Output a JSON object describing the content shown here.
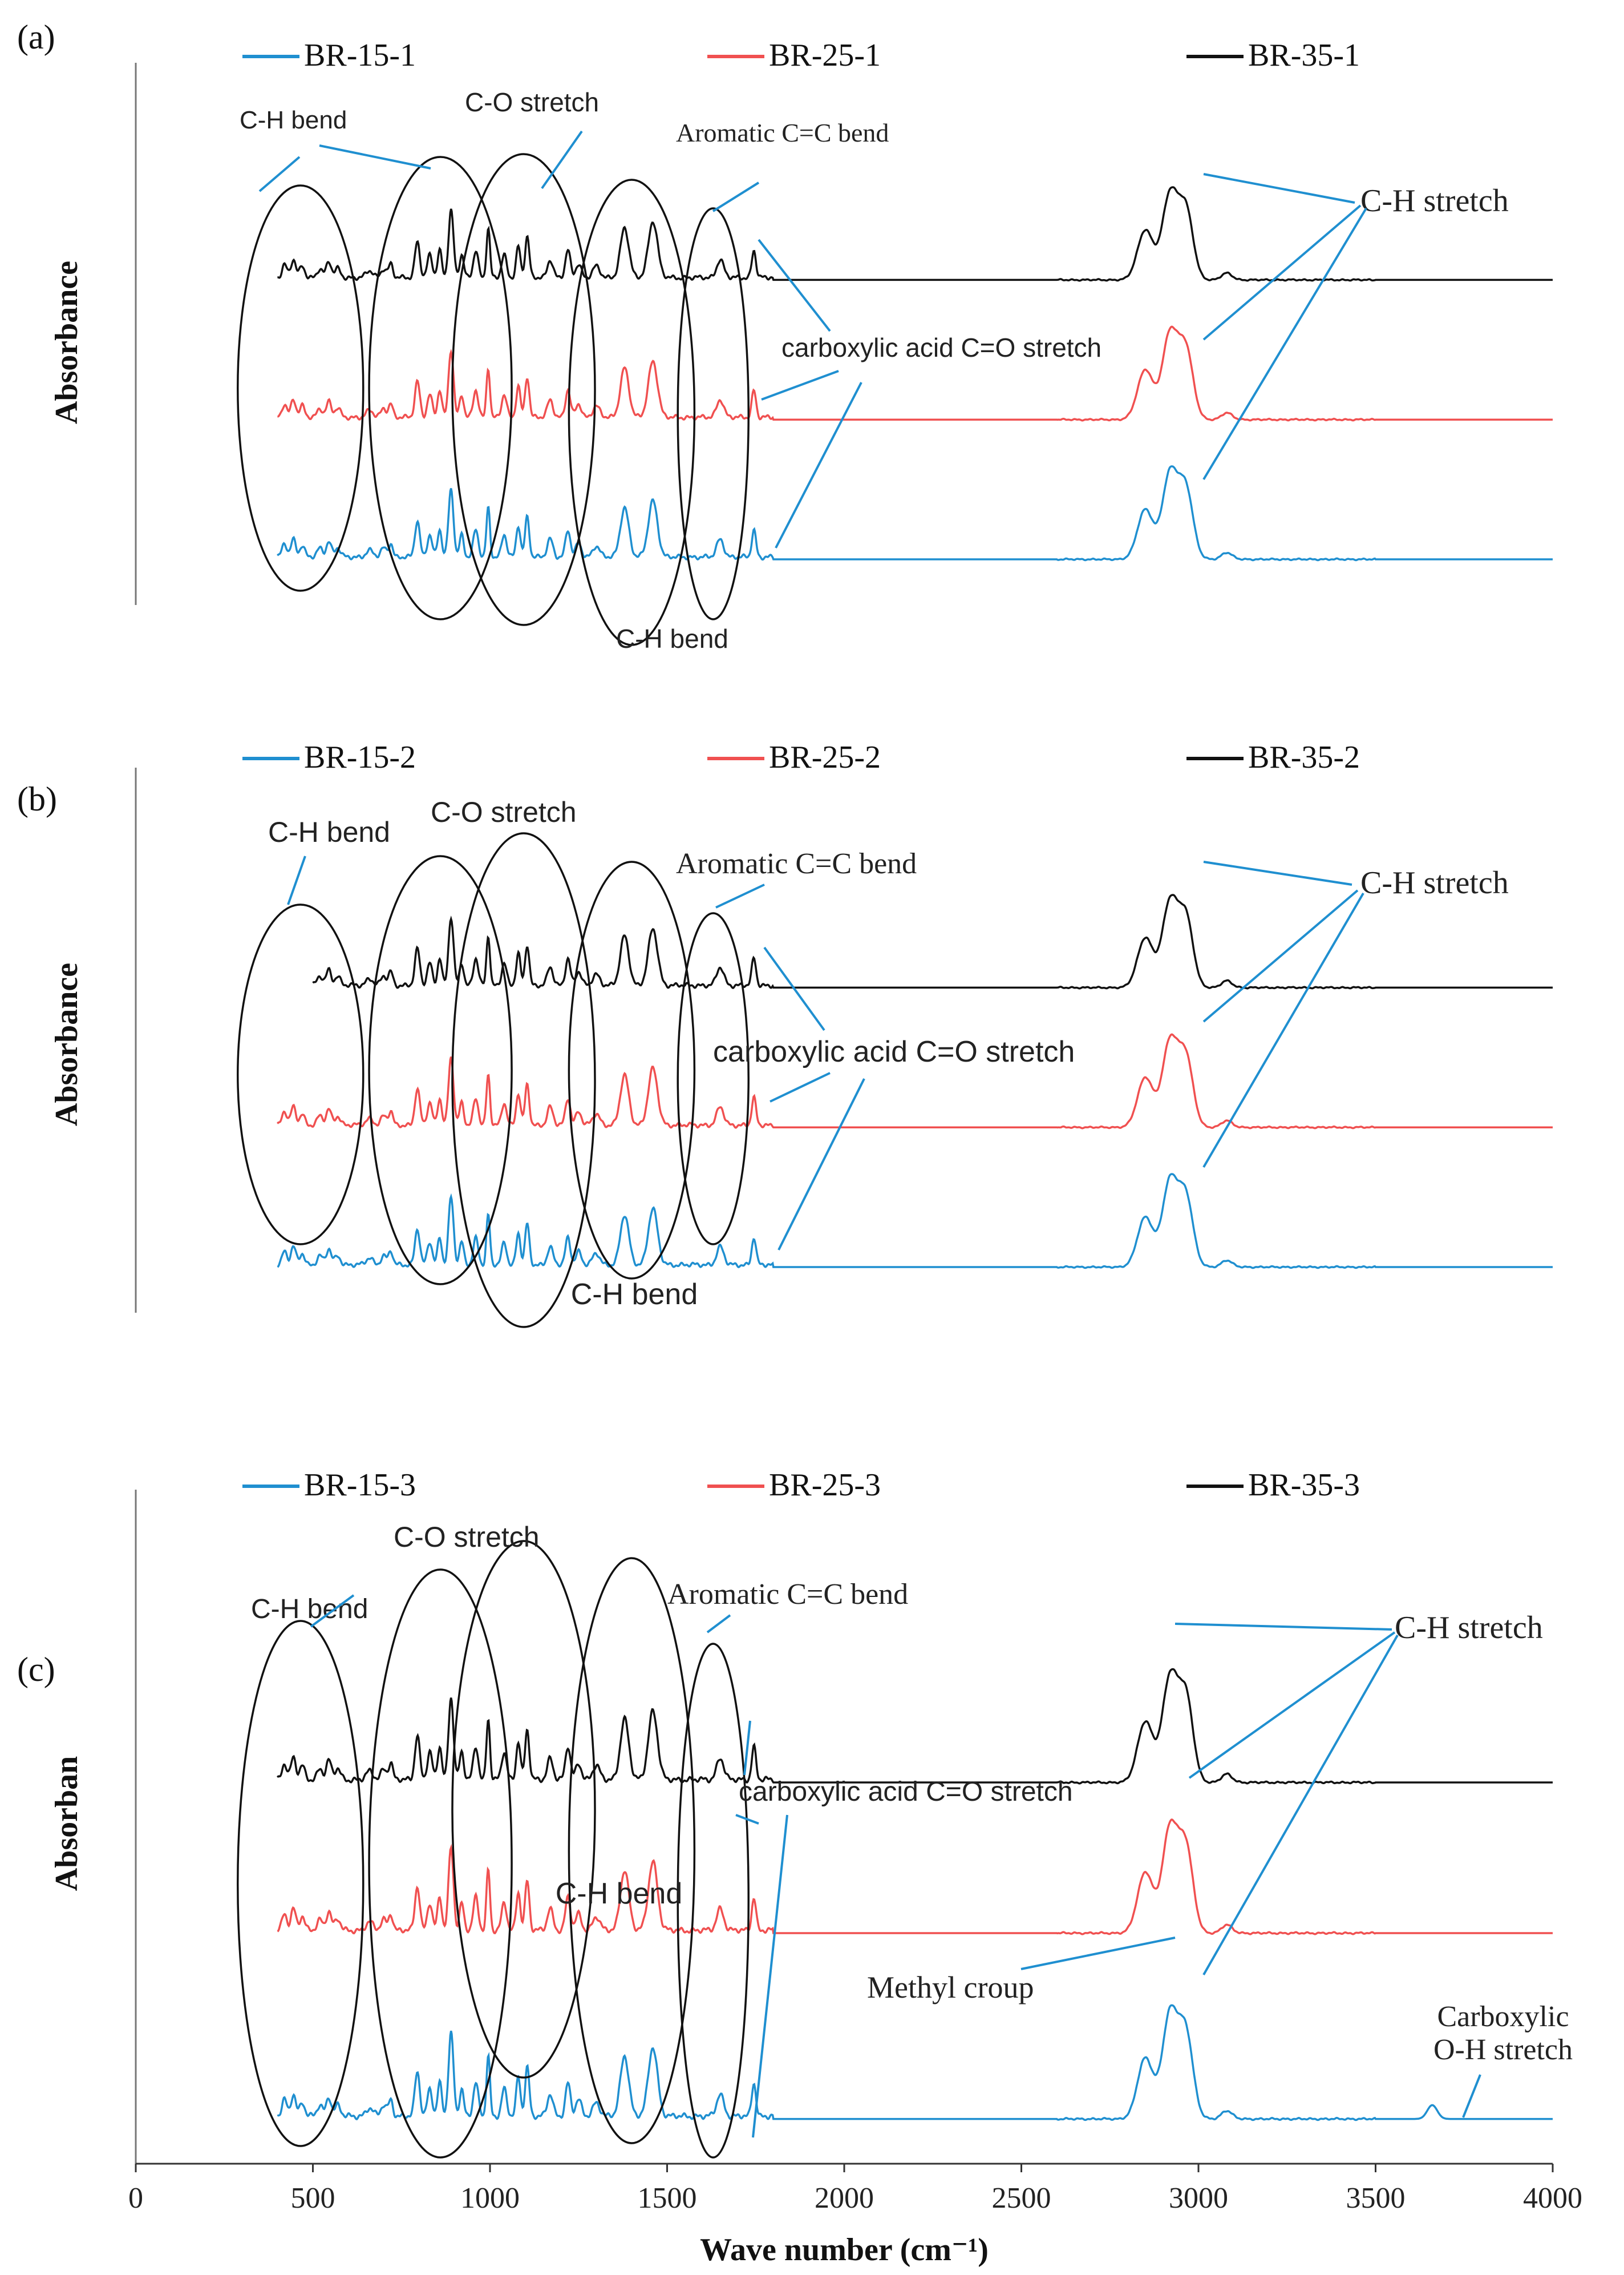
{
  "figure": {
    "xlabel": "Wave number (cm⁻¹)",
    "xlim": [
      0,
      4000
    ],
    "xticks": [
      0,
      500,
      1000,
      1500,
      2000,
      2500,
      3000,
      3500,
      4000
    ]
  },
  "colors": {
    "blue": "#1f8fd0",
    "red": "#f05050",
    "black": "#111111",
    "callout": "#1f8fd0"
  },
  "chart_data": [
    {
      "type": "line",
      "panel_label": "(a)",
      "ylabel": "Absorbance",
      "legend": [
        "BR-15-1",
        "BR-25-1",
        "BR-35-1"
      ],
      "series": [
        {
          "name": "BR-15-1",
          "color": "#1f8fd0",
          "baseline_level": 0.1,
          "x_start": 400,
          "x_end": 4000
        },
        {
          "name": "BR-25-1",
          "color": "#f05050",
          "baseline_level": 0.44,
          "x_start": 400,
          "x_end": 4000
        },
        {
          "name": "BR-35-1",
          "color": "#111111",
          "baseline_level": 0.78,
          "x_start": 400,
          "x_end": 4000
        }
      ],
      "annotations": {
        "ch_bend_left": "C-H bend",
        "co_stretch": "C-O stretch",
        "aromatic": "Aromatic C=C bend",
        "carboxylic_co": "carboxylic acid C=O stretch",
        "ch_bend_mid": "C-H bend",
        "ch_stretch": "C-H stretch"
      }
    },
    {
      "type": "line",
      "panel_label": "(b)",
      "ylabel": "Absorbance",
      "legend": [
        "BR-15-2",
        "BR-25-2",
        "BR-35-2"
      ],
      "series": [
        {
          "name": "BR-15-2",
          "color": "#1f8fd0",
          "baseline_level": 0.1,
          "x_start": 400,
          "x_end": 4000
        },
        {
          "name": "BR-25-2",
          "color": "#f05050",
          "baseline_level": 0.44,
          "x_start": 400,
          "x_end": 4000
        },
        {
          "name": "BR-35-2",
          "color": "#111111",
          "baseline_level": 0.78,
          "x_start": 500,
          "x_end": 4000
        }
      ],
      "annotations": {
        "ch_bend_left": "C-H bend",
        "co_stretch": "C-O stretch",
        "aromatic": "Aromatic C=C bend",
        "carboxylic_co": "carboxylic acid C=O stretch",
        "ch_bend_mid": "C-H bend",
        "ch_stretch": "C-H stretch"
      }
    },
    {
      "type": "line",
      "panel_label": "(c)",
      "ylabel": "Absorban",
      "legend": [
        "BR-15-3",
        "BR-25-3",
        "BR-35-3"
      ],
      "series": [
        {
          "name": "BR-15-3",
          "color": "#1f8fd0",
          "baseline_level": 0.08,
          "x_start": 400,
          "x_end": 4000
        },
        {
          "name": "BR-25-3",
          "color": "#f05050",
          "baseline_level": 0.45,
          "x_start": 400,
          "x_end": 4000
        },
        {
          "name": "BR-35-3",
          "color": "#111111",
          "baseline_level": 0.75,
          "x_start": 400,
          "x_end": 4000
        }
      ],
      "annotations": {
        "ch_bend_left": "C-H bend",
        "co_stretch": "C-O stretch",
        "aromatic": "Aromatic C=C bend",
        "carboxylic_co": "carboxylic acid C=O stretch",
        "ch_bend_mid": "C-H bend",
        "ch_stretch": "C-H stretch",
        "methyl": "Methyl croup",
        "carboxylic_oh": "Carboxylic O-H stretch"
      }
    }
  ],
  "peaks": [
    {
      "x": 420,
      "h": 0.06,
      "w": 7
    },
    {
      "x": 445,
      "h": 0.08,
      "w": 7
    },
    {
      "x": 470,
      "h": 0.05,
      "w": 7
    },
    {
      "x": 520,
      "h": 0.04,
      "w": 8
    },
    {
      "x": 545,
      "h": 0.07,
      "w": 7
    },
    {
      "x": 570,
      "h": 0.04,
      "w": 8
    },
    {
      "x": 660,
      "h": 0.03,
      "w": 10
    },
    {
      "x": 700,
      "h": 0.04,
      "w": 8
    },
    {
      "x": 720,
      "h": 0.06,
      "w": 6
    },
    {
      "x": 795,
      "h": 0.16,
      "w": 7
    },
    {
      "x": 830,
      "h": 0.1,
      "w": 7
    },
    {
      "x": 858,
      "h": 0.12,
      "w": 6
    },
    {
      "x": 890,
      "h": 0.3,
      "w": 7
    },
    {
      "x": 920,
      "h": 0.1,
      "w": 6
    },
    {
      "x": 960,
      "h": 0.12,
      "w": 7
    },
    {
      "x": 995,
      "h": 0.22,
      "w": 5
    },
    {
      "x": 1040,
      "h": 0.1,
      "w": 7
    },
    {
      "x": 1080,
      "h": 0.14,
      "w": 6
    },
    {
      "x": 1105,
      "h": 0.18,
      "w": 6
    },
    {
      "x": 1170,
      "h": 0.08,
      "w": 8
    },
    {
      "x": 1220,
      "h": 0.12,
      "w": 7
    },
    {
      "x": 1250,
      "h": 0.06,
      "w": 8
    },
    {
      "x": 1300,
      "h": 0.05,
      "w": 10
    },
    {
      "x": 1380,
      "h": 0.22,
      "w": 12
    },
    {
      "x": 1460,
      "h": 0.25,
      "w": 13
    },
    {
      "x": 1650,
      "h": 0.08,
      "w": 10
    },
    {
      "x": 1745,
      "h": 0.12,
      "w": 6
    },
    {
      "x": 2850,
      "h": 0.22,
      "w": 22
    },
    {
      "x": 2920,
      "h": 0.38,
      "w": 22
    },
    {
      "x": 2965,
      "h": 0.3,
      "w": 20
    },
    {
      "x": 3080,
      "h": 0.03,
      "w": 15
    }
  ]
}
